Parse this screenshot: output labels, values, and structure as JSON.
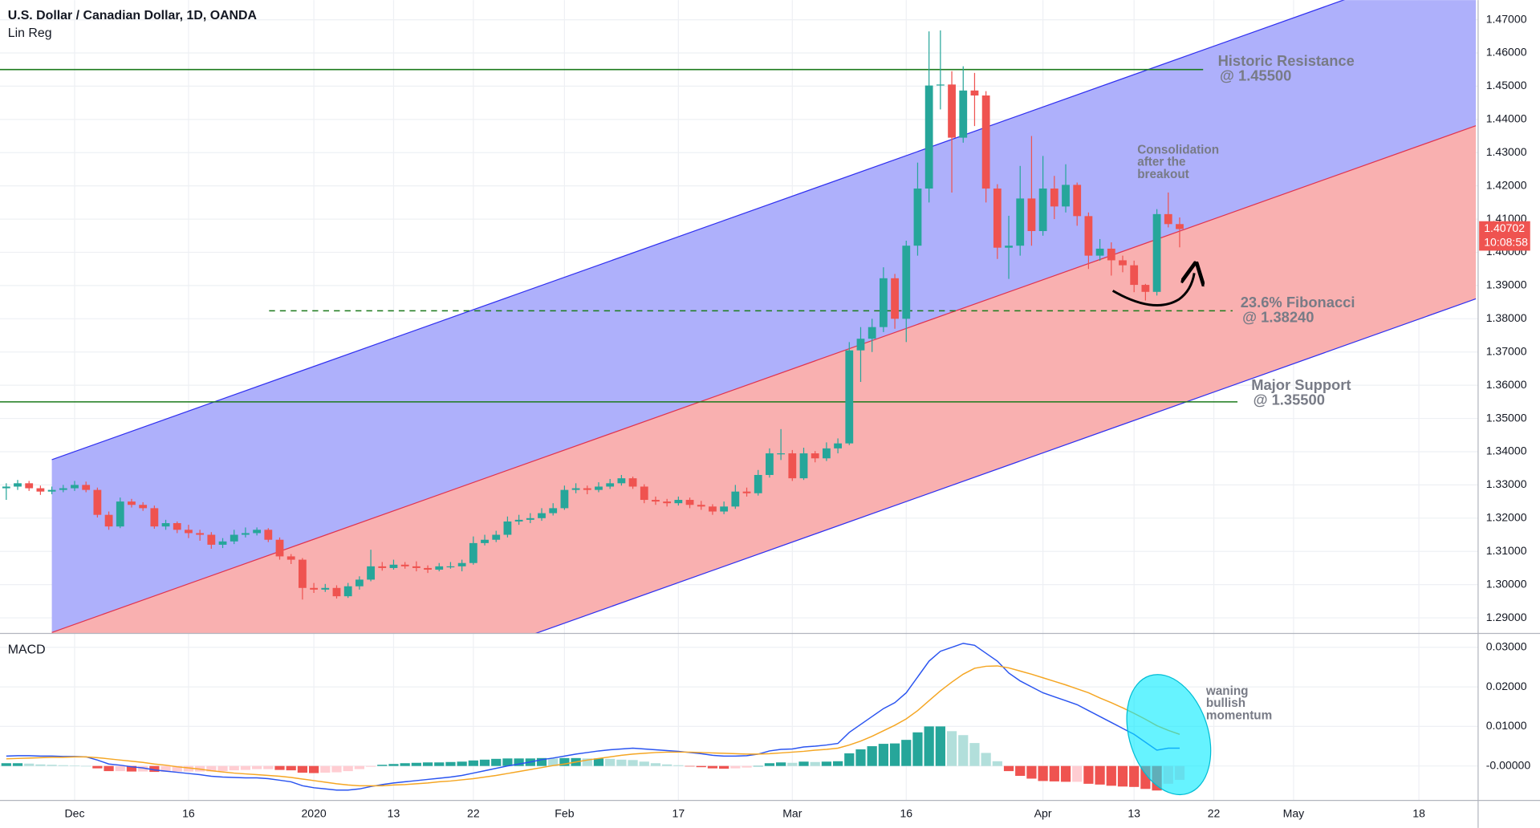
{
  "chart_data": [
    {
      "type": "candlestick",
      "title": "U.S. Dollar / Canadian Dollar, 1D, OANDA",
      "subtitle": "Lin Reg",
      "xlim": [
        -0.55,
        129.2
      ],
      "xticks": [
        {
          "value": 6,
          "label": "Dec"
        },
        {
          "value": 16,
          "label": "16"
        },
        {
          "value": 27,
          "label": "2020"
        },
        {
          "value": 34,
          "label": "13"
        },
        {
          "value": 41,
          "label": "22"
        },
        {
          "value": 49,
          "label": "Feb"
        },
        {
          "value": 59,
          "label": "17"
        },
        {
          "value": 69,
          "label": "Mar"
        },
        {
          "value": 79,
          "label": "16"
        },
        {
          "value": 91,
          "label": "Apr"
        },
        {
          "value": 99,
          "label": "13"
        },
        {
          "value": 106,
          "label": "22"
        },
        {
          "value": 113,
          "label": "May"
        },
        {
          "value": 124,
          "label": "18"
        }
      ],
      "ylim": [
        1.2853,
        1.4759
      ],
      "yticks": [
        {
          "value": 1.29,
          "label": "1.29000"
        },
        {
          "value": 1.3,
          "label": "1.30000"
        },
        {
          "value": 1.31,
          "label": "1.31000"
        },
        {
          "value": 1.32,
          "label": "1.32000"
        },
        {
          "value": 1.33,
          "label": "1.33000"
        },
        {
          "value": 1.34,
          "label": "1.34000"
        },
        {
          "value": 1.35,
          "label": "1.35000"
        },
        {
          "value": 1.36,
          "label": "1.36000"
        },
        {
          "value": 1.37,
          "label": "1.37000"
        },
        {
          "value": 1.38,
          "label": "1.38000"
        },
        {
          "value": 1.39,
          "label": "1.39000"
        },
        {
          "value": 1.4,
          "label": "1.40000"
        },
        {
          "value": 1.41,
          "label": "1.41000"
        },
        {
          "value": 1.42,
          "label": "1.42000"
        },
        {
          "value": 1.43,
          "label": "1.43000"
        },
        {
          "value": 1.44,
          "label": "1.44000"
        },
        {
          "value": 1.45,
          "label": "1.45000"
        },
        {
          "value": 1.46,
          "label": "1.46000"
        },
        {
          "value": 1.47,
          "label": "1.47000"
        }
      ],
      "grid": true,
      "up_color": "#26a69a",
      "down_color": "#ef5350",
      "open": [
        1.329,
        1.3295,
        1.3305,
        1.329,
        1.328,
        1.3285,
        1.329,
        1.33,
        1.3285,
        1.321,
        1.3175,
        1.325,
        1.324,
        1.323,
        1.3175,
        1.3185,
        1.3165,
        1.3155,
        1.315,
        1.312,
        1.313,
        1.315,
        1.3155,
        1.3165,
        1.3135,
        1.3085,
        1.3075,
        1.299,
        1.2985,
        1.299,
        1.2965,
        1.2995,
        1.3015,
        1.3055,
        1.305,
        1.306,
        1.3055,
        1.305,
        1.3045,
        1.3055,
        1.3055,
        1.3065,
        1.3125,
        1.3135,
        1.315,
        1.319,
        1.3195,
        1.32,
        1.3215,
        1.323,
        1.3285,
        1.329,
        1.3285,
        1.3295,
        1.3305,
        1.332,
        1.3295,
        1.3255,
        1.325,
        1.3245,
        1.3255,
        1.324,
        1.3235,
        1.322,
        1.3235,
        1.328,
        1.3275,
        1.333,
        1.3395,
        1.3395,
        1.332,
        1.3395,
        1.338,
        1.341,
        1.3425,
        1.3705,
        1.374,
        1.3775,
        1.3922,
        1.38,
        1.402,
        1.4192,
        1.4502,
        1.4505,
        1.4345,
        1.4487,
        1.4472,
        1.4192,
        1.4014,
        1.402,
        1.4162,
        1.4064,
        1.4192,
        1.4138,
        1.4203,
        1.4109,
        1.399,
        1.4011,
        1.3976,
        1.3961,
        1.3902,
        1.3881,
        1.4115,
        1.4085
      ],
      "high": [
        1.3305,
        1.3315,
        1.3312,
        1.3298,
        1.3295,
        1.33,
        1.3312,
        1.331,
        1.3292,
        1.322,
        1.3262,
        1.3258,
        1.3248,
        1.3238,
        1.3195,
        1.319,
        1.318,
        1.3165,
        1.3158,
        1.314,
        1.3165,
        1.3172,
        1.3172,
        1.317,
        1.3142,
        1.3092,
        1.308,
        1.3005,
        1.3002,
        1.2998,
        1.3005,
        1.3025,
        1.3105,
        1.3068,
        1.3075,
        1.3068,
        1.307,
        1.3058,
        1.3065,
        1.3068,
        1.3075,
        1.3145,
        1.315,
        1.3162,
        1.3205,
        1.321,
        1.3215,
        1.323,
        1.3245,
        1.3298,
        1.3305,
        1.3298,
        1.3308,
        1.3318,
        1.333,
        1.3325,
        1.3302,
        1.3265,
        1.3258,
        1.3265,
        1.3262,
        1.3252,
        1.3242,
        1.325,
        1.33,
        1.3292,
        1.3345,
        1.341,
        1.3468,
        1.3405,
        1.3412,
        1.3402,
        1.3428,
        1.344,
        1.373,
        1.3775,
        1.38,
        1.3955,
        1.3935,
        1.4035,
        1.427,
        1.4665,
        1.4668,
        1.4545,
        1.456,
        1.454,
        1.4485,
        1.4205,
        1.411,
        1.426,
        1.435,
        1.429,
        1.423,
        1.4265,
        1.421,
        1.412,
        1.404,
        1.403,
        1.399,
        1.3975,
        1.3905,
        1.413,
        1.418,
        1.4105
      ],
      "low": [
        1.3255,
        1.3285,
        1.3282,
        1.327,
        1.3272,
        1.3278,
        1.3282,
        1.3278,
        1.3202,
        1.3165,
        1.317,
        1.3232,
        1.3222,
        1.3168,
        1.3165,
        1.3155,
        1.314,
        1.3132,
        1.3108,
        1.311,
        1.3122,
        1.3142,
        1.3148,
        1.3128,
        1.3075,
        1.3062,
        1.2955,
        1.2975,
        1.2978,
        1.2958,
        1.296,
        1.2985,
        1.301,
        1.3042,
        1.3045,
        1.3048,
        1.304,
        1.3035,
        1.304,
        1.3048,
        1.304,
        1.306,
        1.3118,
        1.3128,
        1.3142,
        1.318,
        1.3185,
        1.3192,
        1.3208,
        1.3225,
        1.3275,
        1.3272,
        1.3278,
        1.3288,
        1.3298,
        1.3288,
        1.3245,
        1.324,
        1.3235,
        1.3238,
        1.323,
        1.3225,
        1.321,
        1.3212,
        1.3228,
        1.3265,
        1.3268,
        1.3322,
        1.3375,
        1.3312,
        1.3315,
        1.3368,
        1.3372,
        1.3395,
        1.342,
        1.361,
        1.37,
        1.376,
        1.377,
        1.373,
        1.399,
        1.415,
        1.443,
        1.418,
        1.433,
        1.438,
        1.415,
        1.398,
        1.392,
        1.399,
        1.402,
        1.405,
        1.41,
        1.412,
        1.408,
        1.395,
        1.3975,
        1.393,
        1.394,
        1.388,
        1.3855,
        1.387,
        1.4075,
        1.4015
      ],
      "close": [
        1.3295,
        1.3305,
        1.329,
        1.328,
        1.3285,
        1.329,
        1.33,
        1.3285,
        1.321,
        1.3175,
        1.325,
        1.324,
        1.323,
        1.3175,
        1.3185,
        1.3165,
        1.3155,
        1.315,
        1.312,
        1.313,
        1.315,
        1.3155,
        1.3165,
        1.3135,
        1.3085,
        1.3075,
        1.299,
        1.2985,
        1.299,
        1.2965,
        1.2995,
        1.3015,
        1.3055,
        1.305,
        1.306,
        1.3055,
        1.305,
        1.3045,
        1.3055,
        1.3055,
        1.3065,
        1.3125,
        1.3135,
        1.315,
        1.319,
        1.3195,
        1.32,
        1.3215,
        1.323,
        1.3285,
        1.329,
        1.3285,
        1.3295,
        1.3305,
        1.332,
        1.3295,
        1.3255,
        1.325,
        1.3245,
        1.3255,
        1.324,
        1.3235,
        1.322,
        1.3235,
        1.328,
        1.3275,
        1.333,
        1.3395,
        1.3395,
        1.332,
        1.3395,
        1.338,
        1.341,
        1.3425,
        1.3705,
        1.374,
        1.3775,
        1.3922,
        1.38,
        1.402,
        1.4192,
        1.4502,
        1.4505,
        1.4345,
        1.4487,
        1.4472,
        1.4192,
        1.4014,
        1.402,
        1.4162,
        1.4064,
        1.4192,
        1.4138,
        1.4203,
        1.4109,
        1.399,
        1.4011,
        1.3976,
        1.3961,
        1.3902,
        1.3881,
        1.4115,
        1.4085,
        1.407
      ],
      "last_price_label": "1.40702",
      "countdown": "10:08:58",
      "last_price_color": "#ef5350",
      "regression": {
        "x": [
          4,
          129
        ],
        "upper": [
          1.3376,
          1.4901
        ],
        "middle": [
          1.2856,
          1.4381
        ],
        "lower": [
          1.2335,
          1.386
        ],
        "upper_fill": "#aeb0fb",
        "lower_fill": "#f9b0b0",
        "upper_line": "#2f2ff0",
        "middle_line": "#e0334f",
        "lower_line": "#2f2ff0"
      },
      "levels": [
        {
          "name": "Historic Resistance",
          "label": "@ 1.45500",
          "value": 1.455,
          "dashed": false
        },
        {
          "name": "23.6% Fibonacci",
          "label": "@ 1.38240",
          "value": 1.3824,
          "dashed": true
        },
        {
          "name": "Major Support",
          "label": "@ 1.35500",
          "value": 1.355,
          "dashed": false
        }
      ],
      "level_color": "#1b7a1b",
      "annotations": [
        [
          "Consolidation",
          "after the",
          "breakout"
        ]
      ]
    },
    {
      "type": "macd",
      "title": "MACD",
      "ylim": [
        -0.0087,
        0.0335
      ],
      "yticks": [
        {
          "value": 0.03,
          "label": "0.03000"
        },
        {
          "value": 0.02,
          "label": "0.02000"
        },
        {
          "value": 0.01,
          "label": "0.01000"
        },
        {
          "value": 0,
          "label": "-0.00000"
        }
      ],
      "series": [
        {
          "color": "#2a54f0",
          "values": [
            0.0025,
            0.0026,
            0.0026,
            0.0025,
            0.0025,
            0.0024,
            0.0024,
            0.0023,
            0.0015,
            0.0005,
            0.0002,
            -0.0002,
            -0.0005,
            -0.001,
            -0.0013,
            -0.0016,
            -0.0019,
            -0.0022,
            -0.0026,
            -0.0028,
            -0.0029,
            -0.003,
            -0.003,
            -0.0032,
            -0.0036,
            -0.004,
            -0.005,
            -0.0055,
            -0.0058,
            -0.0061,
            -0.0061,
            -0.0058,
            -0.0052,
            -0.0047,
            -0.0043,
            -0.004,
            -0.0037,
            -0.0034,
            -0.0031,
            -0.0028,
            -0.0024,
            -0.0018,
            -0.0012,
            -0.0006,
            0.0,
            0.0005,
            0.001,
            0.0016,
            0.002,
            0.0025,
            0.003,
            0.0034,
            0.0038,
            0.0041,
            0.0043,
            0.0045,
            0.0043,
            0.0041,
            0.0039,
            0.0037,
            0.0034,
            0.0031,
            0.0027,
            0.0025,
            0.0025,
            0.0026,
            0.003,
            0.0038,
            0.0042,
            0.0043,
            0.0048,
            0.005,
            0.0053,
            0.0057,
            0.0085,
            0.0105,
            0.0125,
            0.0145,
            0.016,
            0.0185,
            0.0225,
            0.0265,
            0.029,
            0.03,
            0.031,
            0.0305,
            0.0285,
            0.0265,
            0.0235,
            0.0215,
            0.02,
            0.0185,
            0.0175,
            0.0165,
            0.0155,
            0.014,
            0.0125,
            0.011,
            0.0095,
            0.008,
            0.006,
            0.004,
            0.0045,
            0.0045
          ]
        },
        {
          "color": "#f5a623",
          "values": [
            0.0018,
            0.0019,
            0.002,
            0.0021,
            0.0022,
            0.0022,
            0.0023,
            0.0023,
            0.0021,
            0.0018,
            0.0015,
            0.0012,
            0.0009,
            0.0005,
            0.0002,
            -0.0002,
            -0.0005,
            -0.0008,
            -0.0012,
            -0.0015,
            -0.0018,
            -0.002,
            -0.0022,
            -0.0024,
            -0.0026,
            -0.0029,
            -0.0033,
            -0.0037,
            -0.0041,
            -0.0045,
            -0.0048,
            -0.005,
            -0.005,
            -0.005,
            -0.0048,
            -0.0047,
            -0.0045,
            -0.0043,
            -0.004,
            -0.0038,
            -0.0035,
            -0.0032,
            -0.0028,
            -0.0024,
            -0.0019,
            -0.0014,
            -0.0009,
            -0.0004,
            0.0001,
            0.0005,
            0.001,
            0.0015,
            0.0019,
            0.0023,
            0.0027,
            0.003,
            0.0032,
            0.0034,
            0.0035,
            0.0035,
            0.0035,
            0.0034,
            0.0033,
            0.0032,
            0.0031,
            0.003,
            0.003,
            0.0031,
            0.0033,
            0.0035,
            0.0037,
            0.004,
            0.0042,
            0.0045,
            0.0053,
            0.0063,
            0.0075,
            0.0089,
            0.0103,
            0.0119,
            0.014,
            0.0165,
            0.019,
            0.0212,
            0.0232,
            0.0247,
            0.0252,
            0.0253,
            0.0248,
            0.024,
            0.0232,
            0.0223,
            0.0214,
            0.0205,
            0.0195,
            0.0185,
            0.0172,
            0.016,
            0.0147,
            0.0133,
            0.0118,
            0.0102,
            0.009,
            0.008
          ]
        }
      ],
      "histogram": {
        "values": [
          0.0007,
          0.0007,
          0.0006,
          0.0004,
          0.0003,
          0.0002,
          0.0001,
          0.0,
          -0.0006,
          -0.0013,
          -0.0013,
          -0.0014,
          -0.0014,
          -0.0015,
          -0.0015,
          -0.0014,
          -0.0014,
          -0.0014,
          -0.0014,
          -0.0013,
          -0.0011,
          -0.001,
          -0.0008,
          -0.0008,
          -0.001,
          -0.0011,
          -0.0017,
          -0.0018,
          -0.0017,
          -0.0016,
          -0.0013,
          -0.0008,
          -0.0002,
          0.0003,
          0.0005,
          0.0007,
          0.0008,
          0.0009,
          0.0009,
          0.001,
          0.0011,
          0.0014,
          0.0016,
          0.0018,
          0.0019,
          0.0019,
          0.0019,
          0.002,
          0.0019,
          0.002,
          0.002,
          0.0019,
          0.0019,
          0.0018,
          0.0016,
          0.0015,
          0.0011,
          0.0007,
          0.0004,
          0.0002,
          -0.0001,
          -0.0003,
          -0.0006,
          -0.0007,
          -0.0006,
          -0.0004,
          0.0,
          0.0007,
          0.0009,
          0.0008,
          0.0011,
          0.001,
          0.0011,
          0.0012,
          0.0032,
          0.0042,
          0.005,
          0.0056,
          0.0057,
          0.0066,
          0.0085,
          0.01,
          0.01,
          0.0088,
          0.0078,
          0.0058,
          0.0033,
          0.0012,
          -0.0013,
          -0.0025,
          -0.0032,
          -0.0038,
          -0.0039,
          -0.004,
          -0.004,
          -0.0045,
          -0.0047,
          -0.005,
          -0.0052,
          -0.0053,
          -0.0058,
          -0.0062,
          -0.0045,
          -0.0035
        ],
        "colors": [
          "#26a69a",
          "#b2dfdb",
          "#ffcdd2",
          "#ef5350"
        ]
      },
      "annotations": [
        [
          "waning",
          "bullish",
          "momentum"
        ]
      ]
    }
  ]
}
